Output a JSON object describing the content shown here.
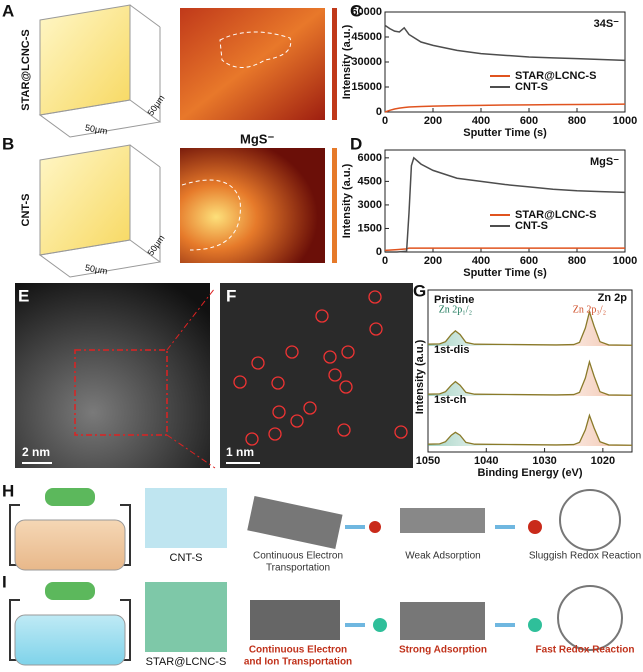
{
  "panel_labels": [
    "A",
    "B",
    "C",
    "D",
    "E",
    "F",
    "G",
    "H",
    "I"
  ],
  "panel_a": {
    "sample": "STAR@LCNC-S",
    "axis_1": "50μm",
    "axis_2": "50μm"
  },
  "panel_b": {
    "sample": "CNT-S",
    "axis_1": "50μm",
    "axis_2": "50μm",
    "ion": "MgS⁻"
  },
  "panel_e": {
    "scale_bar": "2 nm"
  },
  "panel_f": {
    "scale_bar": "1 nm"
  },
  "panel_h": {
    "sample": "CNT-S",
    "steps": [
      [
        "Continuous Electron",
        "Transportation"
      ],
      [
        "Weak Adsorption"
      ],
      [
        "Sluggish Redox Reaction"
      ]
    ]
  },
  "panel_i": {
    "sample": "STAR@LCNC-S",
    "steps": [
      [
        "Continuous Electron",
        "and Ion Transportation"
      ],
      [
        "Strong Adsorption"
      ],
      [
        "Fast Redox Reaction"
      ]
    ]
  },
  "chart_data": [
    {
      "type": "line",
      "annotation": "34S⁻",
      "xlabel": "Sputter Time (s)",
      "ylabel": "Intensity (a.u.)",
      "x": [
        0,
        20,
        40,
        60,
        80,
        100,
        150,
        200,
        300,
        400,
        500,
        600,
        700,
        800,
        900,
        1000
      ],
      "series": [
        {
          "name": "STAR@LCNC-S",
          "color": "#e0531f",
          "values": [
            0,
            1000,
            1800,
            2300,
            2700,
            3000,
            3300,
            3500,
            3800,
            4000,
            4200,
            4300,
            4400,
            4500,
            4600,
            4700
          ]
        },
        {
          "name": "CNT-S",
          "color": "#4d4d4d",
          "values": [
            52000,
            50000,
            48500,
            48000,
            50500,
            46500,
            42000,
            40000,
            37000,
            35000,
            34000,
            33000,
            32500,
            32000,
            31500,
            31000
          ]
        }
      ],
      "xlim": [
        0,
        1000
      ],
      "xticks": [
        0,
        200,
        400,
        600,
        800,
        1000
      ],
      "ylim": [
        0,
        60000
      ],
      "yticks": [
        0,
        15000,
        30000,
        45000,
        60000
      ],
      "legend": "center right"
    },
    {
      "type": "line",
      "annotation": "MgS⁻",
      "xlabel": "Sputter Time (s)",
      "ylabel": "Intensity (a.u.)",
      "x": [
        0,
        50,
        90,
        100,
        110,
        120,
        150,
        200,
        300,
        400,
        500,
        600,
        700,
        800,
        900,
        1000
      ],
      "series": [
        {
          "name": "STAR@LCNC-S",
          "color": "#e0531f",
          "values": [
            100,
            150,
            200,
            250,
            250,
            250,
            250,
            250,
            250,
            250,
            250,
            250,
            250,
            250,
            250,
            250
          ]
        },
        {
          "name": "CNT-S",
          "color": "#4d4d4d",
          "values": [
            0,
            0,
            50,
            2500,
            5500,
            6000,
            5600,
            5200,
            4700,
            4500,
            4300,
            4150,
            4000,
            3900,
            3850,
            3800
          ]
        }
      ],
      "xlim": [
        0,
        1000
      ],
      "xticks": [
        0,
        200,
        400,
        600,
        800,
        1000
      ],
      "ylim": [
        0,
        6500
      ],
      "yticks": [
        0,
        1500,
        3000,
        4500,
        6000
      ],
      "legend": "center right"
    },
    {
      "type": "spectra",
      "title": "Zn 2p",
      "xlabel": "Binding Energy (eV)",
      "ylabel": "Intensity (a.u.)",
      "peak_labels": [
        {
          "text": "Zn 2p₁/₂",
          "x": 1045.3,
          "color": "#1f7a5c"
        },
        {
          "text": "Zn 2p₃/₂",
          "x": 1022.3,
          "color": "#d0502a"
        }
      ],
      "x": [
        1050,
        1048,
        1047,
        1046,
        1045.3,
        1044.5,
        1043.5,
        1042,
        1035,
        1028,
        1025,
        1024,
        1023,
        1022.3,
        1021.5,
        1020.5,
        1019,
        1015
      ],
      "subplots": [
        {
          "label": "Pristine",
          "values": [
            0.05,
            0.06,
            0.12,
            0.32,
            0.42,
            0.32,
            0.1,
            0.05,
            0.04,
            0.03,
            0.04,
            0.1,
            0.5,
            0.95,
            0.55,
            0.12,
            0.03,
            0.02
          ]
        },
        {
          "label": "1st-dis",
          "values": [
            0.05,
            0.06,
            0.12,
            0.3,
            0.4,
            0.3,
            0.1,
            0.05,
            0.04,
            0.03,
            0.04,
            0.1,
            0.5,
            0.95,
            0.55,
            0.12,
            0.03,
            0.02
          ]
        },
        {
          "label": "1st-ch",
          "values": [
            0.05,
            0.06,
            0.12,
            0.3,
            0.38,
            0.3,
            0.1,
            0.05,
            0.04,
            0.03,
            0.04,
            0.1,
            0.45,
            0.85,
            0.5,
            0.12,
            0.03,
            0.02
          ]
        }
      ],
      "xlim": [
        1050,
        1015
      ],
      "xticks": [
        1050,
        1040,
        1030,
        1020
      ],
      "ylim": [
        0,
        1
      ],
      "color": "#8a7a2a"
    }
  ]
}
